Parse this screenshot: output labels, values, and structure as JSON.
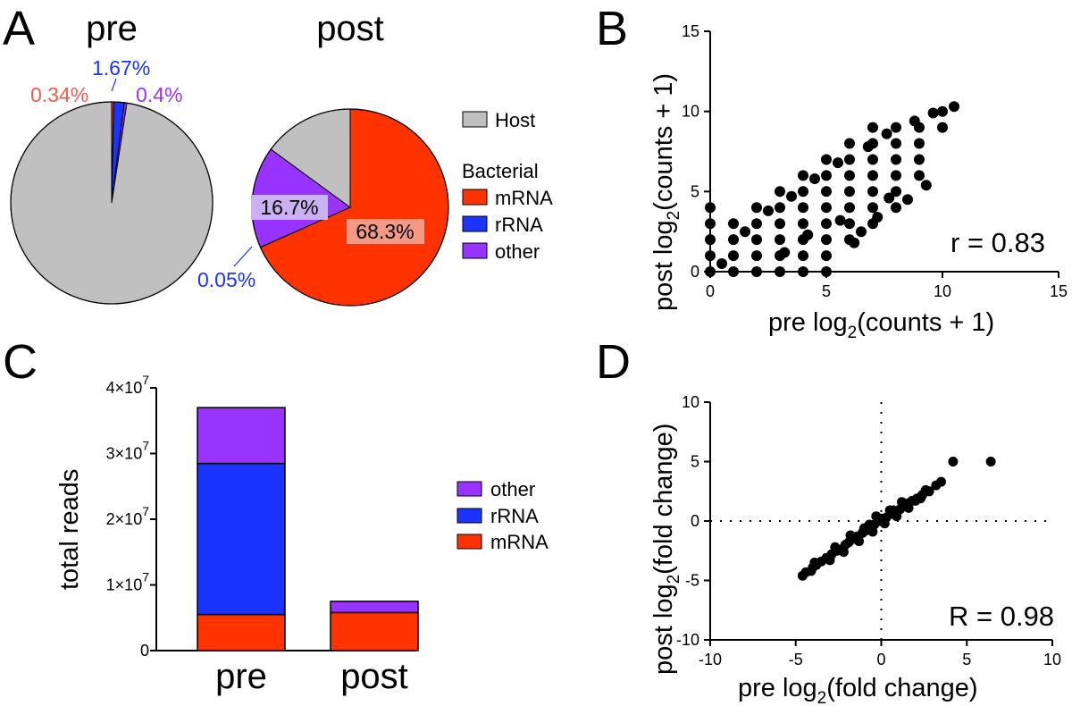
{
  "panel_letters": {
    "a": "A",
    "b": "B",
    "c": "C",
    "d": "D"
  },
  "colors": {
    "host": "#c0c0c0",
    "mrna": "#ff3300",
    "rrna": "#1a33ff",
    "other": "#9933ff",
    "label_mrna": "#f25a4e",
    "label_rrna": "#1a33ff",
    "label_other": "#9933ff",
    "box_other": "#cbb0f3",
    "box_mrna": "#f49985"
  },
  "chart_data": [
    {
      "id": "A",
      "type": "pie",
      "pies": [
        {
          "title": "pre",
          "slices": [
            {
              "name": "mRNA",
              "value": 0.34,
              "label": "0.34%"
            },
            {
              "name": "rRNA",
              "value": 1.67,
              "label": "1.67%"
            },
            {
              "name": "other",
              "value": 0.4,
              "label": "0.4%"
            },
            {
              "name": "Host",
              "value": 97.59,
              "label": ""
            }
          ]
        },
        {
          "title": "post",
          "slices": [
            {
              "name": "mRNA",
              "value": 68.3,
              "label": "68.3%"
            },
            {
              "name": "rRNA",
              "value": 0.05,
              "label": "0.05%"
            },
            {
              "name": "other",
              "value": 16.7,
              "label": "16.7%"
            },
            {
              "name": "Host",
              "value": 14.95,
              "label": ""
            }
          ]
        }
      ],
      "legend": {
        "host": "Host",
        "group_title": "Bacterial",
        "items": [
          "mRNA",
          "rRNA",
          "other"
        ]
      }
    },
    {
      "id": "B",
      "type": "scatter",
      "xlabel_prefix": "pre log",
      "ylabel_prefix": "post log",
      "sub": "2",
      "label_suffix": "(counts + 1)",
      "xlim": [
        0,
        15
      ],
      "ylim": [
        0,
        15
      ],
      "xticks": [
        "0",
        "5",
        "10",
        "15"
      ],
      "yticks": [
        "0",
        "5",
        "10",
        "15"
      ],
      "stat": "r = 0.83",
      "points": [
        [
          0,
          0
        ],
        [
          0,
          1
        ],
        [
          0,
          2
        ],
        [
          0,
          3
        ],
        [
          0,
          4
        ],
        [
          1,
          0
        ],
        [
          1,
          1
        ],
        [
          1,
          2
        ],
        [
          1,
          3
        ],
        [
          2,
          0
        ],
        [
          2,
          1
        ],
        [
          2,
          2
        ],
        [
          2,
          3
        ],
        [
          2,
          4
        ],
        [
          3,
          0
        ],
        [
          3,
          1
        ],
        [
          3,
          2
        ],
        [
          3,
          3
        ],
        [
          3,
          4
        ],
        [
          3,
          5
        ],
        [
          4,
          0
        ],
        [
          4,
          1
        ],
        [
          4,
          2
        ],
        [
          4,
          3
        ],
        [
          4,
          4
        ],
        [
          4,
          5
        ],
        [
          4,
          6
        ],
        [
          5,
          0
        ],
        [
          5,
          1
        ],
        [
          5,
          2
        ],
        [
          5,
          3
        ],
        [
          5,
          4
        ],
        [
          5,
          5
        ],
        [
          5,
          6
        ],
        [
          5,
          7
        ],
        [
          6,
          2
        ],
        [
          6,
          3
        ],
        [
          6,
          4
        ],
        [
          6,
          5
        ],
        [
          6,
          6
        ],
        [
          6,
          7
        ],
        [
          6,
          8
        ],
        [
          7,
          3
        ],
        [
          7,
          4
        ],
        [
          7,
          5
        ],
        [
          7,
          6
        ],
        [
          7,
          7
        ],
        [
          7,
          8
        ],
        [
          7,
          9
        ],
        [
          8,
          4
        ],
        [
          8,
          5
        ],
        [
          8,
          6
        ],
        [
          8,
          7
        ],
        [
          8,
          8
        ],
        [
          8,
          9
        ],
        [
          9,
          6
        ],
        [
          9,
          7
        ],
        [
          9,
          8
        ],
        [
          9,
          9
        ],
        [
          10,
          9
        ],
        [
          10,
          10
        ],
        [
          10.5,
          10.3
        ],
        [
          8.5,
          4.5
        ],
        [
          9.3,
          5.4
        ],
        [
          6.5,
          2.5
        ],
        [
          7.2,
          3.4
        ],
        [
          0.5,
          0.5
        ],
        [
          1.5,
          2.5
        ],
        [
          2.5,
          3.8
        ],
        [
          3.5,
          4.7
        ],
        [
          4.5,
          5.8
        ],
        [
          5.5,
          6.8
        ],
        [
          6.8,
          7.8
        ],
        [
          7.6,
          8.6
        ],
        [
          8.8,
          9.4
        ],
        [
          9.6,
          9.9
        ],
        [
          3.2,
          1.2
        ],
        [
          4.2,
          2.3
        ],
        [
          5.6,
          3.2
        ],
        [
          6.2,
          1.8
        ],
        [
          7.7,
          4.6
        ]
      ]
    },
    {
      "id": "C",
      "type": "bar",
      "stacked": true,
      "ylabel": "total reads",
      "ytick_base": "×10",
      "ytick_exp": "7",
      "yticks": [
        {
          "value": 0,
          "label": "0"
        },
        {
          "value": 10000000,
          "mantissa": "1"
        },
        {
          "value": 20000000,
          "mantissa": "2"
        },
        {
          "value": 30000000,
          "mantissa": "3"
        },
        {
          "value": 40000000,
          "mantissa": "4"
        }
      ],
      "ylim": [
        0,
        40000000
      ],
      "categories": [
        "pre",
        "post"
      ],
      "series": [
        {
          "name": "mRNA",
          "values": [
            5500000,
            5800000
          ]
        },
        {
          "name": "rRNA",
          "values": [
            23000000,
            0
          ]
        },
        {
          "name": "other",
          "values": [
            8500000,
            1700000
          ]
        }
      ],
      "legend": [
        "other",
        "rRNA",
        "mRNA"
      ]
    },
    {
      "id": "D",
      "type": "scatter",
      "xlabel_prefix": "pre log",
      "ylabel_prefix": "post log",
      "sub": "2",
      "label_suffix": "(fold change)",
      "xlim": [
        -10,
        10
      ],
      "ylim": [
        -10,
        10
      ],
      "xticks": [
        "-10",
        "-5",
        "0",
        "5",
        "10"
      ],
      "yticks": [
        "-10",
        "-5",
        "0",
        "5",
        "10"
      ],
      "stat": "R = 0.98",
      "points": [
        [
          -4.6,
          -4.6
        ],
        [
          -4.4,
          -4.3
        ],
        [
          -4.1,
          -4.2
        ],
        [
          -3.8,
          -3.7
        ],
        [
          -3.5,
          -3.4
        ],
        [
          -3.2,
          -3.1
        ],
        [
          -2.9,
          -2.8
        ],
        [
          -2.6,
          -2.5
        ],
        [
          -2.4,
          -2.4
        ],
        [
          -2.1,
          -2.0
        ],
        [
          -1.9,
          -1.8
        ],
        [
          -1.6,
          -1.5
        ],
        [
          -1.4,
          -1.3
        ],
        [
          -1.1,
          -1.0
        ],
        [
          -0.9,
          -0.8
        ],
        [
          -0.6,
          -0.5
        ],
        [
          -0.4,
          -0.3
        ],
        [
          -0.1,
          0.0
        ],
        [
          0.1,
          0.1
        ],
        [
          0.3,
          0.3
        ],
        [
          0.6,
          0.6
        ],
        [
          0.8,
          0.7
        ],
        [
          1.1,
          1.0
        ],
        [
          1.3,
          1.3
        ],
        [
          1.6,
          1.5
        ],
        [
          1.8,
          1.7
        ],
        [
          2.1,
          1.9
        ],
        [
          2.4,
          2.2
        ],
        [
          2.8,
          2.5
        ],
        [
          3.2,
          3.0
        ],
        [
          3.5,
          3.3
        ],
        [
          4.2,
          5.0
        ],
        [
          6.4,
          5.0
        ],
        [
          -3.9,
          -3.5
        ],
        [
          -2.7,
          -2.2
        ],
        [
          -1.8,
          -1.2
        ],
        [
          -1.0,
          -0.6
        ],
        [
          -0.3,
          0.4
        ],
        [
          0.5,
          0.9
        ],
        [
          1.2,
          1.6
        ],
        [
          2.0,
          1.7
        ],
        [
          2.6,
          2.6
        ],
        [
          -3.0,
          -3.3
        ],
        [
          -2.2,
          -2.6
        ],
        [
          -1.3,
          -1.7
        ],
        [
          -0.5,
          -0.9
        ],
        [
          0.2,
          -0.2
        ],
        [
          0.9,
          0.4
        ],
        [
          1.6,
          1.1
        ],
        [
          2.3,
          1.9
        ],
        [
          -4.0,
          -3.9
        ],
        [
          0.0,
          0.2
        ],
        [
          -0.7,
          -0.3
        ],
        [
          0.7,
          0.9
        ]
      ]
    }
  ]
}
